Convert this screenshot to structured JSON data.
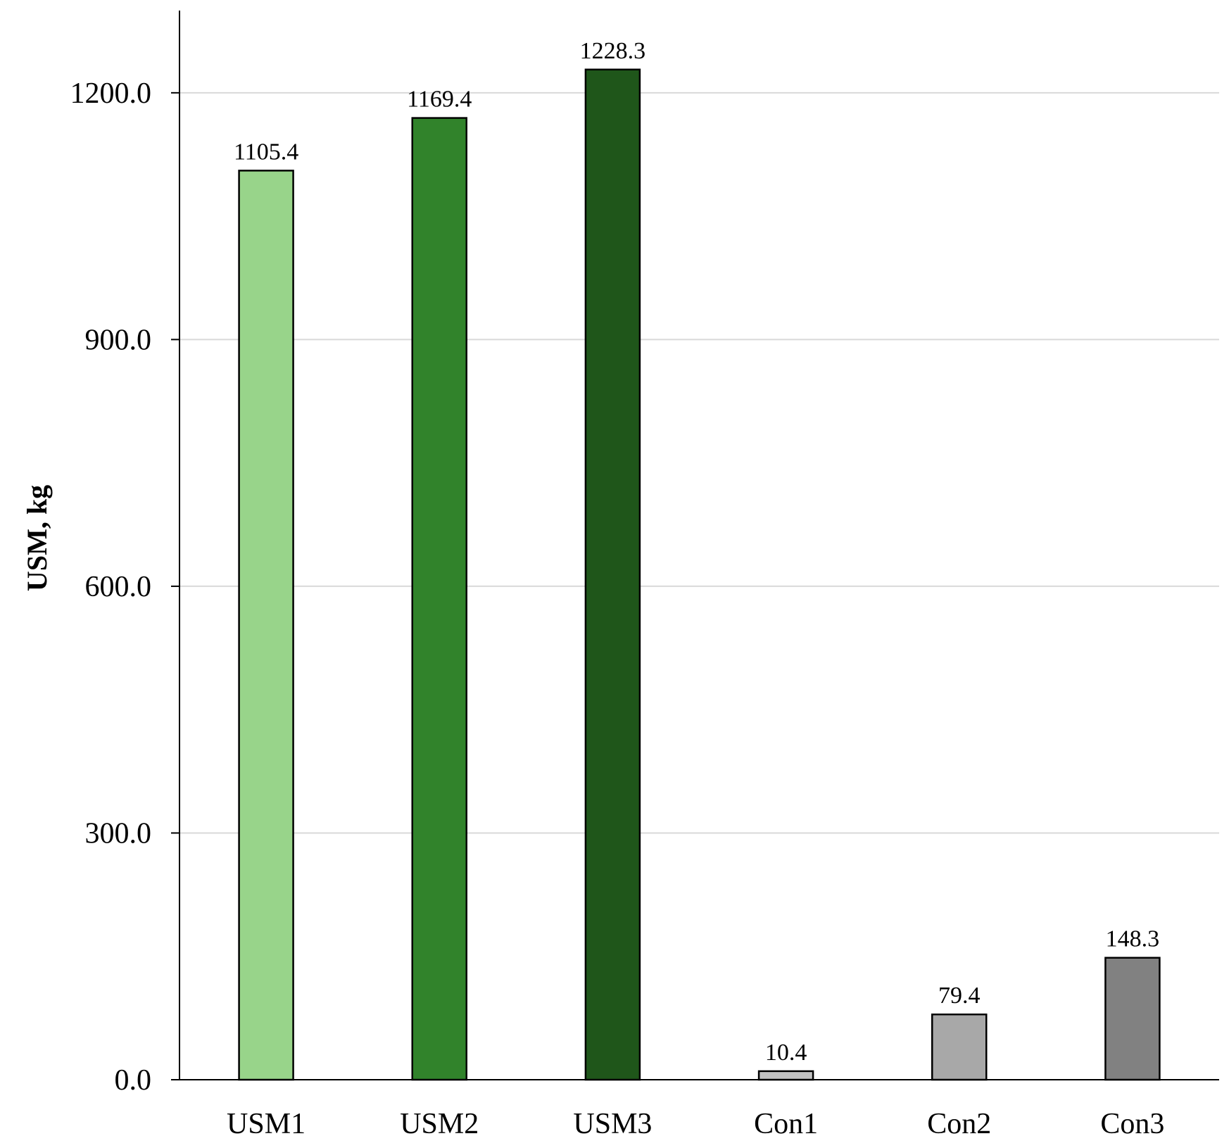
{
  "chart_data": {
    "type": "bar",
    "title": "",
    "xlabel": "",
    "ylabel": "USM, kg",
    "ylim": [
      0,
      1300
    ],
    "yticks": [
      0,
      300,
      600,
      900,
      1200
    ],
    "ytick_labels": [
      "0.0",
      "300.0",
      "600.0",
      "900.0",
      "1200.0"
    ],
    "grid": "horizontal",
    "legend": "none",
    "categories": [
      "USM1",
      "USM2",
      "USM3",
      "Con1",
      "Con2",
      "Con3"
    ],
    "values": [
      1105.4,
      1169.4,
      1228.3,
      10.4,
      79.4,
      148.3
    ],
    "value_labels": [
      "1105.4",
      "1169.4",
      "1228.3",
      "10.4",
      "79.4",
      "148.3"
    ],
    "colors": [
      "#98d48a",
      "#31832b",
      "#1f561a",
      "#c2c2c2",
      "#a8a8a8",
      "#818181"
    ],
    "grid_color": "#d9d9d9",
    "axis_color": "#000000"
  }
}
